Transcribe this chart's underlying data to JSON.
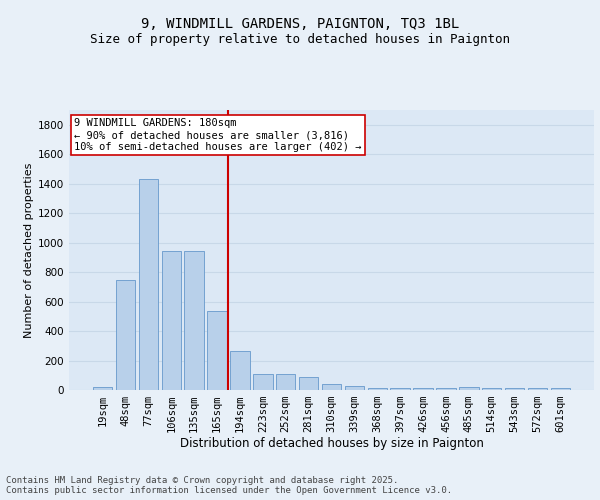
{
  "title1": "9, WINDMILL GARDENS, PAIGNTON, TQ3 1BL",
  "title2": "Size of property relative to detached houses in Paignton",
  "xlabel": "Distribution of detached houses by size in Paignton",
  "ylabel": "Number of detached properties",
  "categories": [
    "19sqm",
    "48sqm",
    "77sqm",
    "106sqm",
    "135sqm",
    "165sqm",
    "194sqm",
    "223sqm",
    "252sqm",
    "281sqm",
    "310sqm",
    "339sqm",
    "368sqm",
    "397sqm",
    "426sqm",
    "456sqm",
    "485sqm",
    "514sqm",
    "543sqm",
    "572sqm",
    "601sqm"
  ],
  "values": [
    22,
    748,
    1435,
    945,
    945,
    535,
    268,
    110,
    110,
    90,
    40,
    28,
    14,
    14,
    14,
    14,
    22,
    14,
    14,
    14,
    14
  ],
  "bar_color": "#b8d0ea",
  "bar_edge_color": "#6699cc",
  "vline_index": 6,
  "vline_color": "#cc0000",
  "annotation_text": "9 WINDMILL GARDENS: 180sqm\n← 90% of detached houses are smaller (3,816)\n10% of semi-detached houses are larger (402) →",
  "annotation_box_color": "#ffffff",
  "annotation_box_edge": "#cc0000",
  "bg_color": "#e8f0f8",
  "plot_bg_color": "#dce8f5",
  "grid_color": "#c8d8e8",
  "ylim": [
    0,
    1900
  ],
  "yticks": [
    0,
    200,
    400,
    600,
    800,
    1000,
    1200,
    1400,
    1600,
    1800
  ],
  "footnote": "Contains HM Land Registry data © Crown copyright and database right 2025.\nContains public sector information licensed under the Open Government Licence v3.0.",
  "footnote_fontsize": 6.5,
  "title1_fontsize": 10,
  "title2_fontsize": 9,
  "xlabel_fontsize": 8.5,
  "ylabel_fontsize": 8,
  "tick_fontsize": 7.5,
  "annotation_fontsize": 7.5
}
